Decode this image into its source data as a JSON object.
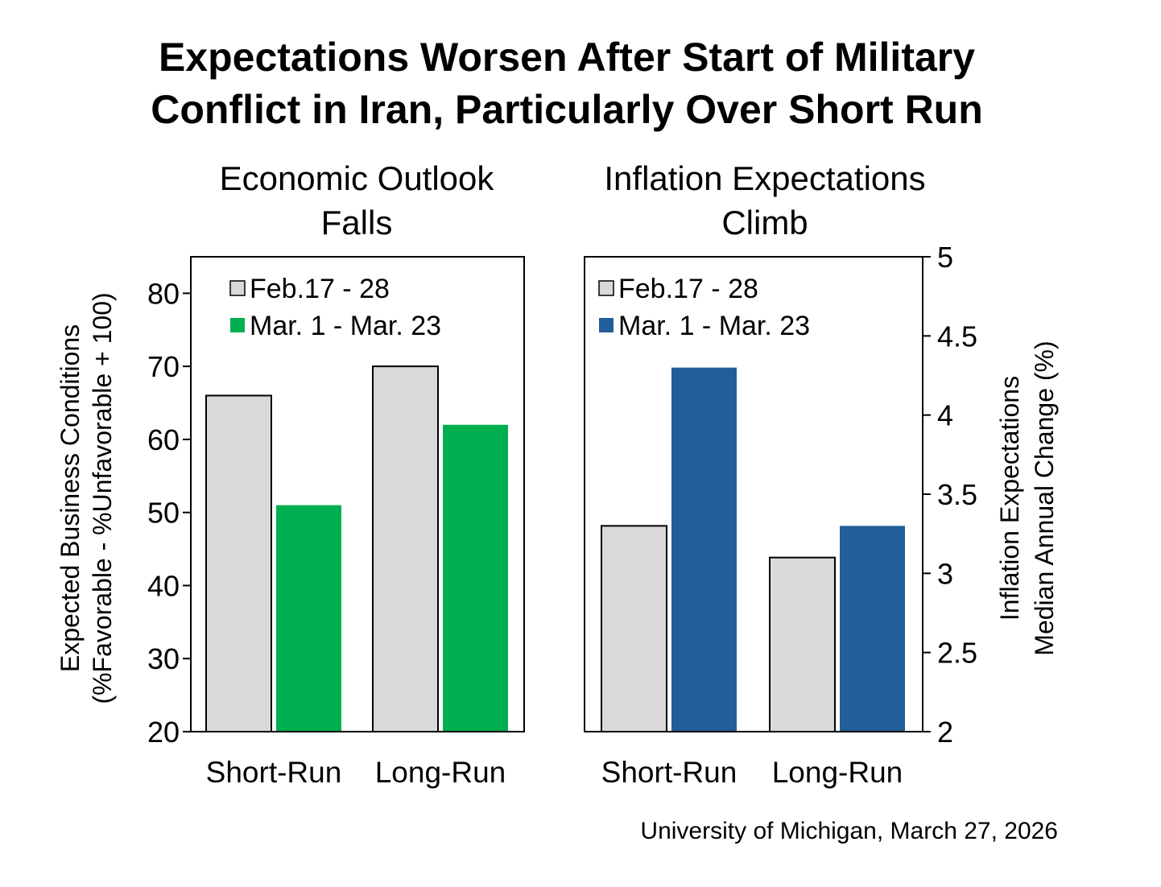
{
  "title_lines": [
    "Expectations Worsen After Start of Military",
    "Conflict in Iran, Particularly Over Short Run"
  ],
  "source": "University of Michigan, March 27, 2026",
  "chart_data": [
    {
      "type": "bar",
      "title_lines": [
        "Economic Outlook",
        "Falls"
      ],
      "categories": [
        "Short-Run",
        "Long-Run"
      ],
      "series": [
        {
          "name": "Feb.17 - 28",
          "values": [
            66,
            70
          ],
          "color": "#d9d9d9"
        },
        {
          "name": "Mar. 1 - Mar. 23",
          "values": [
            51,
            62
          ],
          "color": "#00b050"
        }
      ],
      "ylabel_lines": [
        "Expected Business Conditions",
        "(%Favorable - %Unfavorable + 100)"
      ],
      "ylim": [
        20,
        85
      ],
      "yticks": [
        20,
        30,
        40,
        50,
        60,
        70,
        80
      ],
      "yaxis_side": "left",
      "legend": "top-left",
      "grid": false
    },
    {
      "type": "bar",
      "title_lines": [
        "Inflation Expectations",
        "Climb"
      ],
      "categories": [
        "Short-Run",
        "Long-Run"
      ],
      "series": [
        {
          "name": "Feb.17 - 28",
          "values": [
            3.3,
            3.1
          ],
          "color": "#d9d9d9"
        },
        {
          "name": "Mar. 1 - Mar. 23",
          "values": [
            4.3,
            3.3
          ],
          "color": "#225e9a"
        }
      ],
      "ylabel_lines": [
        "Inflation Expectations",
        "Median Annual Change (%)"
      ],
      "ylim": [
        2,
        5
      ],
      "yticks": [
        2,
        2.5,
        3,
        3.5,
        4,
        4.5,
        5
      ],
      "yaxis_side": "right",
      "legend": "top-left",
      "grid": false
    }
  ]
}
